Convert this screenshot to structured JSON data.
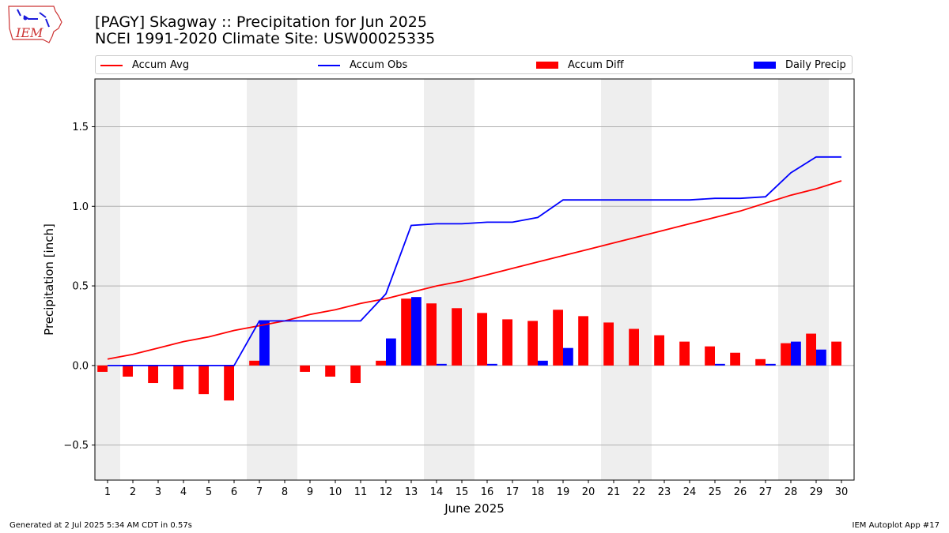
{
  "logo": {
    "text": "IEM"
  },
  "title_line1": "[PAGY] Skagway :: Precipitation for Jun 2025",
  "title_line2": "NCEI 1991-2020 Climate Site: USW00025335",
  "footer_left": "Generated at 2 Jul 2025 5:34 AM CDT in 0.57s",
  "footer_right": "IEM Autoplot App #17",
  "chart_data": {
    "type": "bar",
    "xlabel": "June 2025",
    "ylabel": "Precipitation [inch]",
    "ylim": [
      -0.72,
      1.8
    ],
    "xlim": [
      0.5,
      30.5
    ],
    "yticks": [
      -0.5,
      0.0,
      0.5,
      1.0,
      1.5
    ],
    "ytick_labels": [
      "−0.5",
      "0.0",
      "0.5",
      "1.0",
      "1.5"
    ],
    "grid": "y",
    "legend_position": "top",
    "weekend_days": [
      1,
      7,
      8,
      14,
      15,
      21,
      22,
      28,
      29
    ],
    "days": [
      1,
      2,
      3,
      4,
      5,
      6,
      7,
      8,
      9,
      10,
      11,
      12,
      13,
      14,
      15,
      16,
      17,
      18,
      19,
      20,
      21,
      22,
      23,
      24,
      25,
      26,
      27,
      28,
      29,
      30
    ],
    "series": [
      {
        "name": "Accum Avg",
        "kind": "line",
        "color": "#ff0000",
        "values": [
          0.04,
          0.07,
          0.11,
          0.15,
          0.18,
          0.22,
          0.25,
          0.28,
          0.32,
          0.35,
          0.39,
          0.42,
          0.46,
          0.5,
          0.53,
          0.57,
          0.61,
          0.65,
          0.69,
          0.73,
          0.77,
          0.81,
          0.85,
          0.89,
          0.93,
          0.97,
          1.02,
          1.07,
          1.11,
          1.16
        ]
      },
      {
        "name": "Accum Obs",
        "kind": "line",
        "color": "#0000ff",
        "values": [
          0.0,
          0.0,
          0.0,
          0.0,
          0.0,
          0.0,
          0.28,
          0.28,
          0.28,
          0.28,
          0.28,
          0.45,
          0.88,
          0.89,
          0.89,
          0.9,
          0.9,
          0.93,
          1.04,
          1.04,
          1.04,
          1.04,
          1.04,
          1.04,
          1.05,
          1.05,
          1.06,
          1.21,
          1.31,
          1.31
        ]
      },
      {
        "name": "Accum Diff",
        "kind": "bar",
        "color": "#ff0000",
        "values": [
          -0.04,
          -0.07,
          -0.11,
          -0.15,
          -0.18,
          -0.22,
          0.03,
          0.0,
          -0.04,
          -0.07,
          -0.11,
          0.03,
          0.42,
          0.39,
          0.36,
          0.33,
          0.29,
          0.28,
          0.35,
          0.31,
          0.27,
          0.23,
          0.19,
          0.15,
          0.12,
          0.08,
          0.04,
          0.14,
          0.2,
          0.15
        ]
      },
      {
        "name": "Daily Precip",
        "kind": "bar",
        "color": "#0000ff",
        "values": [
          0,
          0,
          0,
          0,
          0,
          0,
          0.28,
          0,
          0,
          0,
          0,
          0.17,
          0.43,
          0.01,
          0,
          0.01,
          0,
          0.03,
          0.11,
          0,
          0,
          0,
          0,
          0,
          0.01,
          0,
          0.01,
          0.15,
          0.1,
          0
        ]
      }
    ]
  }
}
